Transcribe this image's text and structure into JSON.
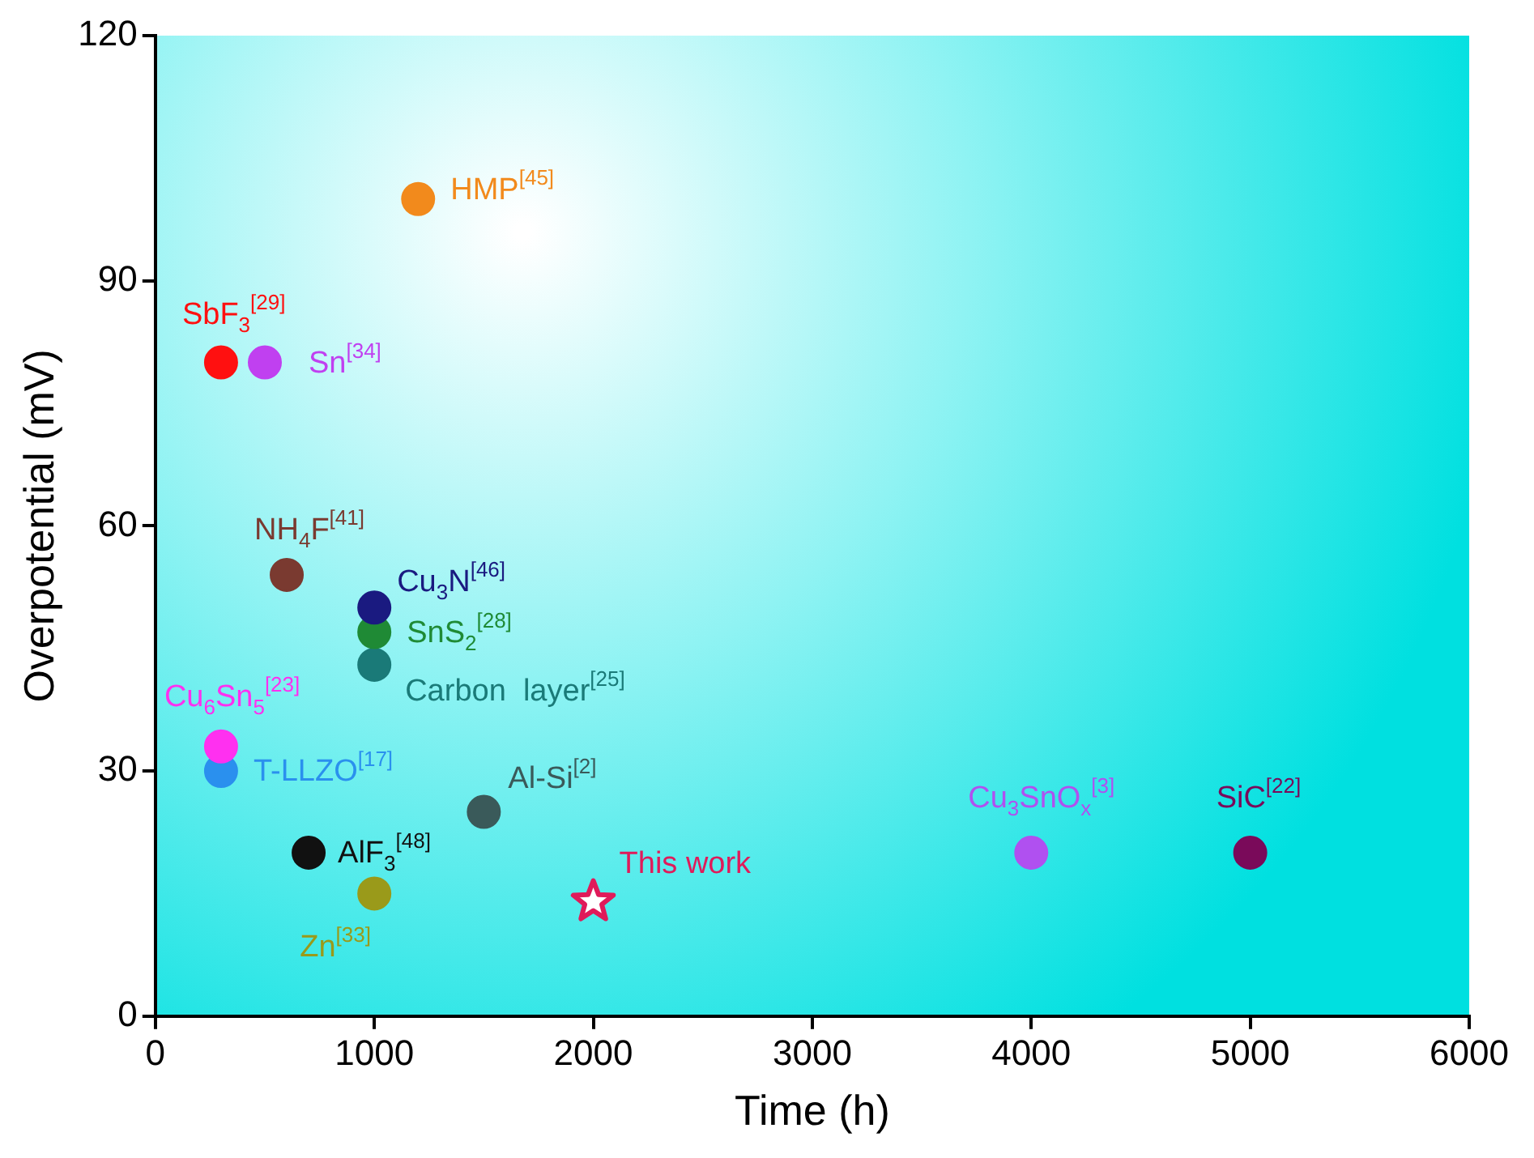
{
  "chart_data": {
    "type": "scatter",
    "xlabel": "Time (h)",
    "ylabel": "Overpotential (mV)",
    "xlim": [
      0,
      6000
    ],
    "ylim": [
      0,
      120
    ],
    "xticks": [
      0,
      1000,
      2000,
      3000,
      4000,
      5000,
      6000
    ],
    "yticks": [
      0,
      30,
      60,
      90,
      120
    ],
    "grid": false,
    "legend": false,
    "marker": "circle",
    "series": [
      {
        "name": "SbF$_{3}$$^{[29]}$",
        "color": "#ff1010",
        "x": [
          300
        ],
        "values": [
          80
        ]
      },
      {
        "name": "Sn$^{[34]}$",
        "color": "#c040f0",
        "x": [
          500
        ],
        "values": [
          80
        ]
      },
      {
        "name": "HMP$^{[45]}$",
        "color": "#f28a1c",
        "x": [
          1200
        ],
        "values": [
          100
        ]
      },
      {
        "name": "NH$_{4}$F$^{[41]}$",
        "color": "#7a3a30",
        "x": [
          600
        ],
        "values": [
          54
        ]
      },
      {
        "name": "Cu$_{3}$N$^{[46]}$",
        "color": "#1a1a80",
        "x": [
          1000
        ],
        "values": [
          50
        ]
      },
      {
        "name": "SnS$_{2}$$^{[28]}$",
        "color": "#1f8a35",
        "x": [
          1000
        ],
        "values": [
          47
        ]
      },
      {
        "name": "Carbon  layer$^{[25]}$",
        "color": "#1a7a78",
        "x": [
          1000
        ],
        "values": [
          43
        ]
      },
      {
        "name": "Cu$_{6}$Sn$_{5}$$^{[23]}$",
        "color": "#ff30f0",
        "x": [
          300
        ],
        "values": [
          33
        ]
      },
      {
        "name": "T-LLZO$^{[17]}$",
        "color": "#2a90ee",
        "x": [
          300
        ],
        "values": [
          30
        ]
      },
      {
        "name": "AlF$_{3}$$^{[48]}$",
        "color": "#111111",
        "x": [
          700
        ],
        "values": [
          20
        ]
      },
      {
        "name": "Zn$^{[33]}$",
        "color": "#9a9a1a",
        "x": [
          1000
        ],
        "values": [
          15
        ]
      },
      {
        "name": "Al-Si$^{[2]}$",
        "color": "#3a5a5a",
        "x": [
          1500
        ],
        "values": [
          25
        ]
      },
      {
        "name": "This work",
        "color": "#e01a5a",
        "x": [
          2000
        ],
        "values": [
          14
        ],
        "marker": "star"
      },
      {
        "name": "Cu$_{3}$SnO$_{x}$$^{[3]}$",
        "color": "#b050f0",
        "x": [
          4000
        ],
        "values": [
          20
        ]
      },
      {
        "name": "SiC$^{[22]}$",
        "color": "#7a0a5a",
        "x": [
          5000
        ],
        "values": [
          20
        ]
      }
    ]
  }
}
